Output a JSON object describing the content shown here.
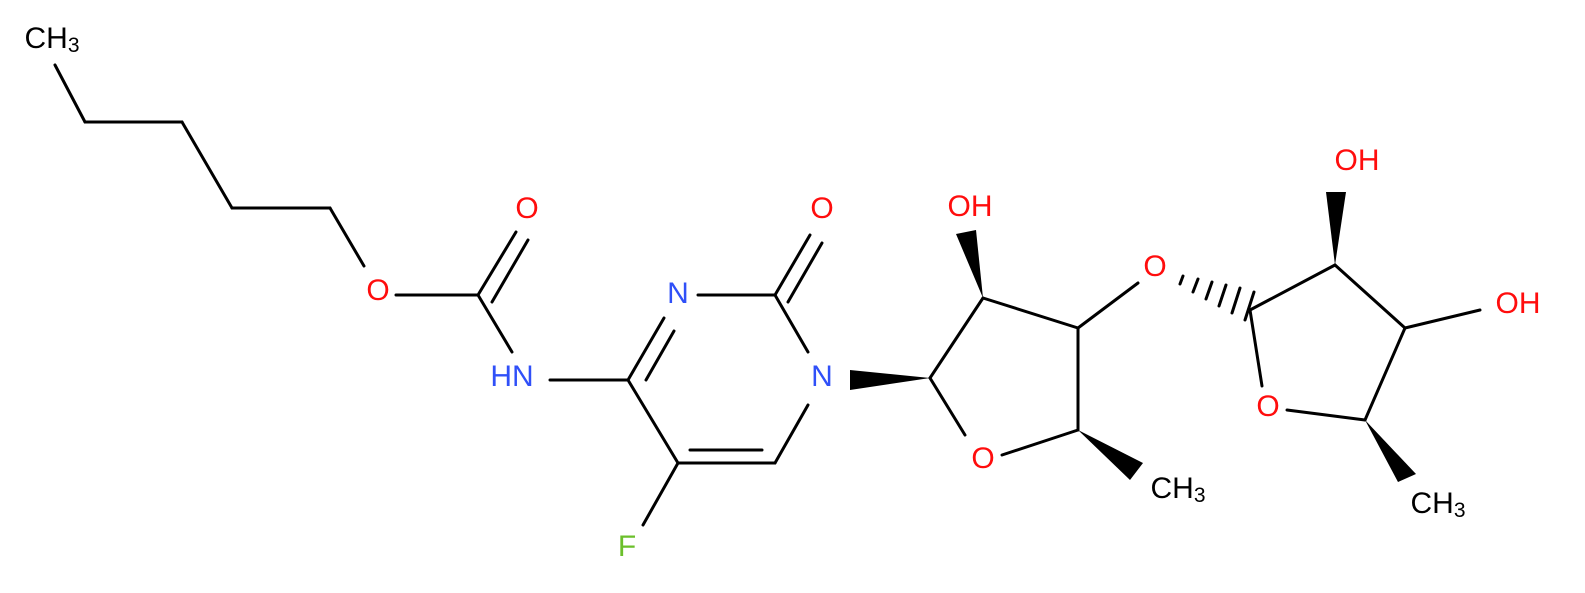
{
  "atoms": [
    {
      "main": "CH",
      "sub": "3"
    },
    {
      "main": "O"
    },
    {
      "main": "O"
    },
    {
      "main": "HN"
    },
    {
      "main": "N"
    },
    {
      "main": "O"
    },
    {
      "main": "N"
    },
    {
      "main": "F"
    },
    {
      "main": "OH"
    },
    {
      "main": "O"
    },
    {
      "main": "CH",
      "sub": "3"
    },
    {
      "main": "O"
    },
    {
      "main": "OH"
    },
    {
      "main": "OH"
    },
    {
      "main": "O"
    },
    {
      "main": "CH",
      "sub": "3"
    }
  ]
}
